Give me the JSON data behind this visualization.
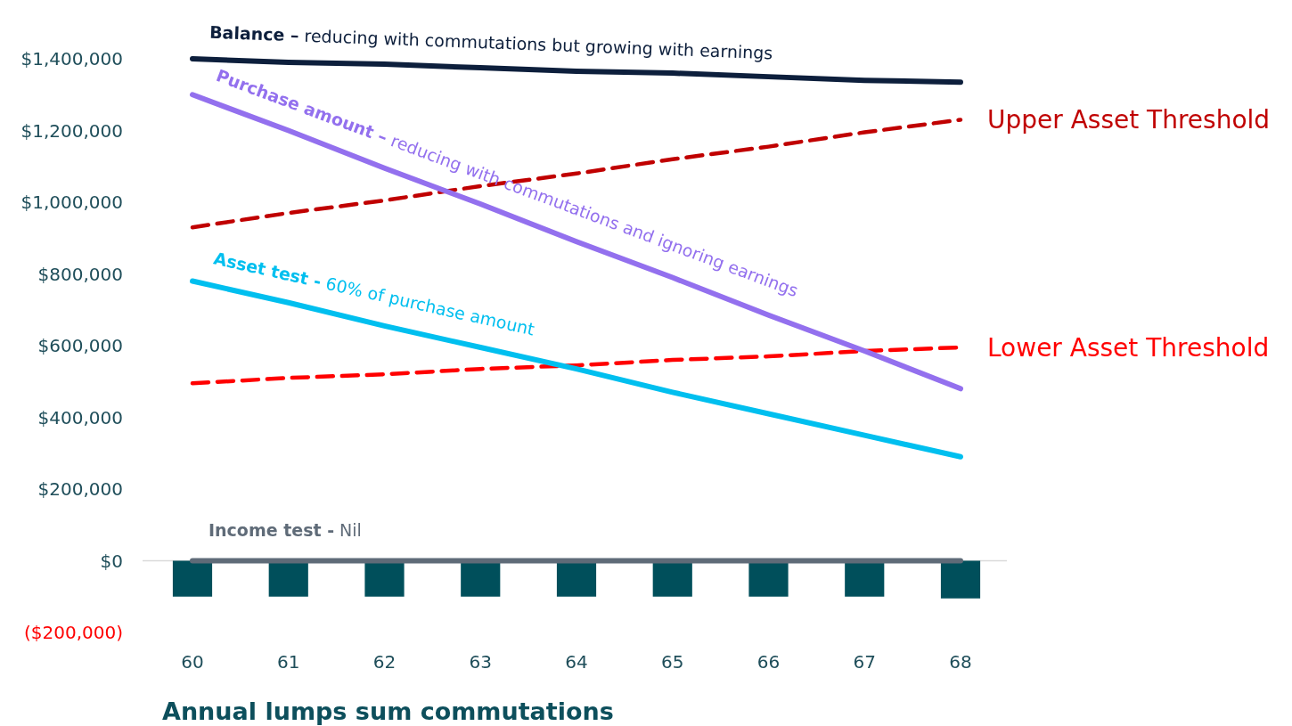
{
  "chart_data": {
    "type": "line",
    "xlabel": "Annual lumps sum commutations",
    "categories": [
      "60",
      "61",
      "62",
      "63",
      "64",
      "65",
      "66",
      "67",
      "68"
    ],
    "ylim": [
      -200000,
      1400000
    ],
    "yticks": [
      {
        "value": -200000,
        "label": "($200,000)"
      },
      {
        "value": 0,
        "label": "$0"
      },
      {
        "value": 200000,
        "label": "$200,000"
      },
      {
        "value": 400000,
        "label": "$400,000"
      },
      {
        "value": 600000,
        "label": "$600,000"
      },
      {
        "value": 800000,
        "label": "$800,000"
      },
      {
        "value": 1000000,
        "label": "$1,000,000"
      },
      {
        "value": 1200000,
        "label": "$1,200,000"
      },
      {
        "value": 1400000,
        "label": "$1,400,000"
      }
    ],
    "marker": "none",
    "series": [
      {
        "type": "bar",
        "color": "#004f5b",
        "values": [
          -100000,
          -100000,
          -100000,
          -100000,
          -100000,
          -100000,
          -100000,
          -100000,
          -105000
        ]
      },
      {
        "name": "Income test - Nil",
        "color": "#5f6b78",
        "values": [
          0,
          0,
          0,
          0,
          0,
          0,
          0,
          0,
          0
        ]
      },
      {
        "name": "Lower Asset Threshold",
        "color": "#ff0000",
        "line_style": "dashed",
        "values": [
          495000,
          510000,
          520000,
          535000,
          545000,
          560000,
          570000,
          585000,
          595000
        ]
      },
      {
        "name": "Asset test - 60% of purchase amount",
        "color": "#00bfef",
        "values": [
          780000,
          720000,
          655000,
          595000,
          535000,
          470000,
          410000,
          350000,
          290000
        ]
      },
      {
        "name": "Upper Asset Threshold",
        "color": "#c00000",
        "line_style": "dashed",
        "values": [
          930000,
          970000,
          1005000,
          1045000,
          1080000,
          1120000,
          1155000,
          1195000,
          1230000
        ]
      },
      {
        "name": "Purchase amount – reducing with commutations and ignoring earnings",
        "color": "#9370ee",
        "values": [
          1300000,
          1200000,
          1095000,
          995000,
          890000,
          790000,
          685000,
          585000,
          480000
        ]
      },
      {
        "name": "Balance – reducing with commutations but growing with earnings",
        "color": "#0d1f3c",
        "values": [
          1400000,
          1390000,
          1385000,
          1375000,
          1365000,
          1360000,
          1350000,
          1340000,
          1335000
        ]
      }
    ]
  }
}
